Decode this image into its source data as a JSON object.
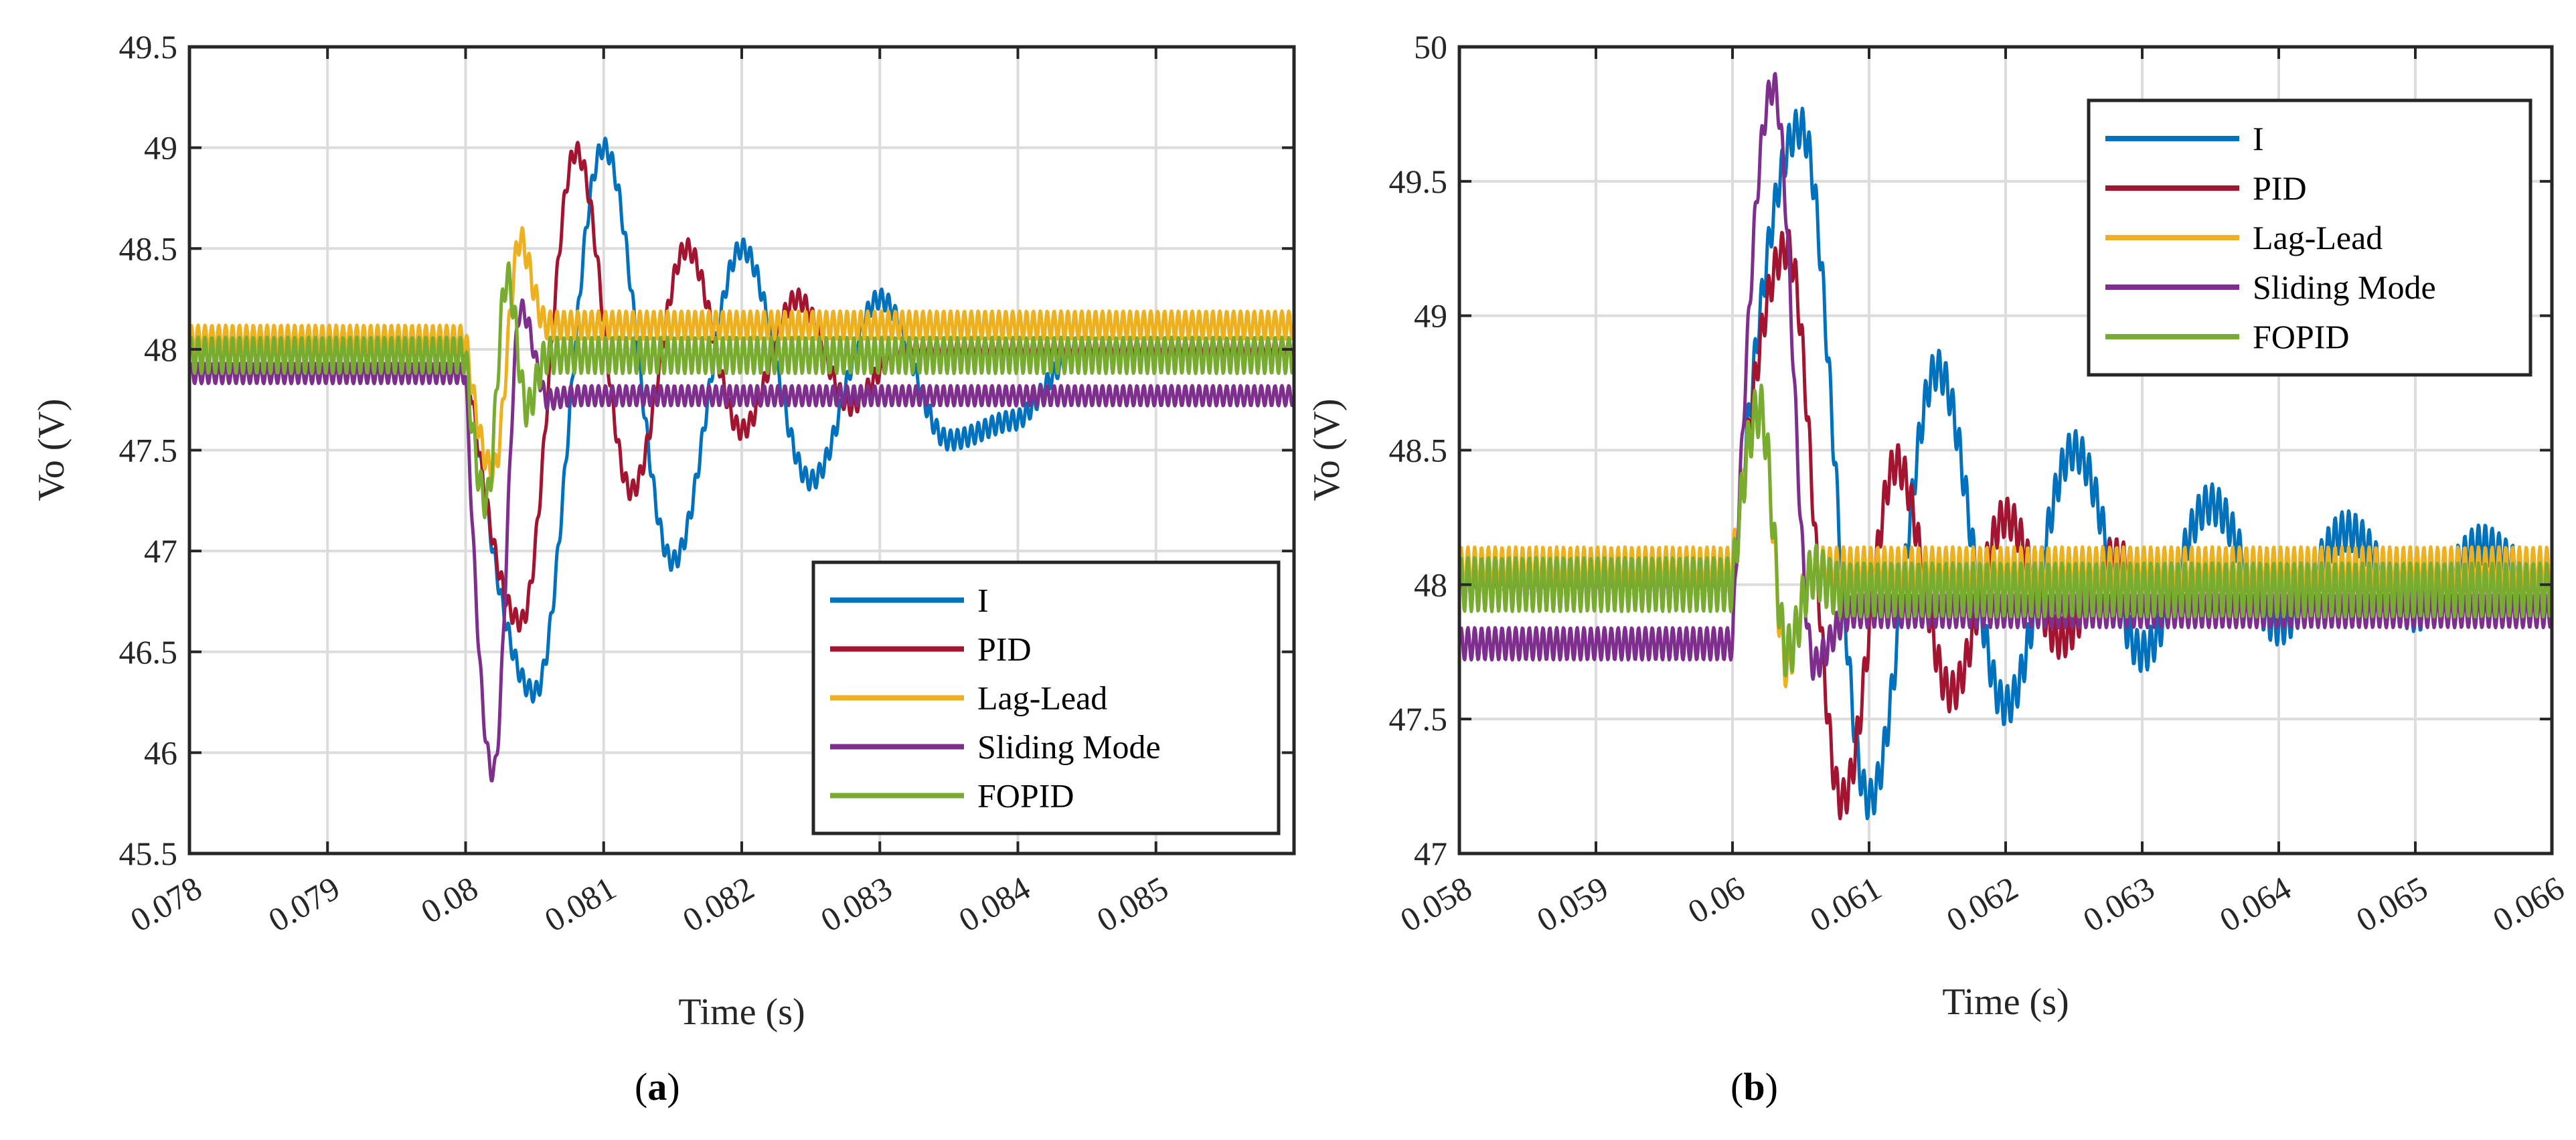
{
  "panel_labels": {
    "a": "a",
    "b": "b",
    "open": "(",
    "close": ")"
  },
  "chart_data": [
    {
      "id": "a",
      "type": "line",
      "xlabel": "Time (s)",
      "ylabel": "Vo (V)",
      "xlim": [
        0.078,
        0.086
      ],
      "ylim": [
        45.5,
        49.5
      ],
      "xticks": [
        0.078,
        0.079,
        0.08,
        0.081,
        0.082,
        0.083,
        0.084,
        0.085
      ],
      "xtick_labels": [
        "0.078",
        "0.079",
        "0.08",
        "0.081",
        "0.082",
        "0.083",
        "0.084",
        "0.085"
      ],
      "yticks": [
        45.5,
        46,
        46.5,
        47,
        47.5,
        48,
        48.5,
        49,
        49.5
      ],
      "ytick_labels": [
        "45.5",
        "46",
        "46.5",
        "47",
        "47.5",
        "48",
        "48.5",
        "49",
        "49.5"
      ],
      "grid": true,
      "legend_position": "bottom-right",
      "step_time": 0.08,
      "series": [
        {
          "name": "I",
          "color": "#0072BD",
          "pre": 48.0,
          "final": 48.0,
          "band": 0.1,
          "initial_dip": 46.3,
          "peaks": [
            49.0,
            48.5,
            48.25
          ],
          "troughs": [
            46.95,
            47.35,
            47.55,
            47.65
          ],
          "period": 0.001,
          "decay": 0.0012
        },
        {
          "name": "PID",
          "color": "#A2142F",
          "pre": 48.0,
          "final": 48.0,
          "band": 0.1,
          "initial_dip": 46.65,
          "peaks": [
            48.98,
            48.5,
            48.25
          ],
          "troughs": [
            47.3,
            47.6,
            47.72
          ],
          "period": 0.0008,
          "decay": 0.0008
        },
        {
          "name": "Lag-Lead",
          "color": "#EDB120",
          "pre": 48.05,
          "final": 48.12,
          "band": 0.14,
          "initial_dip": 47.4,
          "peaks": [
            48.55
          ],
          "troughs": [],
          "period": 0.0004,
          "decay": 0.002
        },
        {
          "name": "Sliding Mode",
          "color": "#7E2F8E",
          "pre": 47.88,
          "final": 47.77,
          "band": 0.1,
          "initial_dip": 45.9,
          "peaks": [
            48.2
          ],
          "troughs": [
            47.75
          ],
          "period": 0.0004,
          "decay": 0.0003
        },
        {
          "name": "FOPID",
          "color": "#77AC30",
          "pre": 47.97,
          "final": 47.97,
          "band": 0.18,
          "initial_dip": 47.25,
          "peaks": [
            48.35
          ],
          "troughs": [
            47.7
          ],
          "period": 0.0003,
          "decay": 0.0002
        }
      ]
    },
    {
      "id": "b",
      "type": "line",
      "xlabel": "Time (s)",
      "ylabel": "Vo (V)",
      "xlim": [
        0.058,
        0.066
      ],
      "ylim": [
        47,
        50
      ],
      "xticks": [
        0.058,
        0.059,
        0.06,
        0.061,
        0.062,
        0.063,
        0.064,
        0.065,
        0.066
      ],
      "xtick_labels": [
        "0.058",
        "0.059",
        "0.06",
        "0.061",
        "0.062",
        "0.063",
        "0.064",
        "0.065",
        "0.066"
      ],
      "yticks": [
        47,
        47.5,
        48,
        48.5,
        49,
        49.5,
        50
      ],
      "ytick_labels": [
        "47",
        "47.5",
        "48",
        "48.5",
        "49",
        "49.5",
        "50"
      ],
      "grid": true,
      "legend_position": "top-right",
      "step_time": 0.06,
      "series": [
        {
          "name": "I",
          "color": "#0072BD",
          "pre": 48.0,
          "final": 48.0,
          "band": 0.15,
          "initial_peak": 49.7,
          "peaks": [
            48.8,
            48.5,
            48.3,
            48.2,
            48.15
          ],
          "troughs": [
            47.2,
            47.55,
            47.75,
            47.85,
            47.9
          ],
          "period": 0.001,
          "decay": 0.0025
        },
        {
          "name": "PID",
          "color": "#A2142F",
          "pre": 48.0,
          "final": 47.98,
          "band": 0.15,
          "initial_peak": 49.25,
          "peaks": [
            48.45,
            48.25,
            48.1
          ],
          "troughs": [
            47.2,
            47.6,
            47.8
          ],
          "period": 0.0008,
          "decay": 0.0012
        },
        {
          "name": "Lag-Lead",
          "color": "#EDB120",
          "pre": 48.05,
          "final": 48.05,
          "band": 0.18,
          "initial_peak": 48.65,
          "peaks": [],
          "troughs": [
            47.7
          ],
          "period": 0.0004,
          "decay": 0.0015
        },
        {
          "name": "Sliding Mode",
          "color": "#7E2F8E",
          "pre": 47.78,
          "final": 47.9,
          "band": 0.12,
          "initial_peak": 49.85,
          "peaks": [],
          "troughs": [
            47.7
          ],
          "period": 0.0006,
          "decay": 0.0004
        },
        {
          "name": "FOPID",
          "color": "#77AC30",
          "pre": 48.0,
          "final": 47.98,
          "band": 0.2,
          "initial_peak": 48.65,
          "peaks": [
            48.05
          ],
          "troughs": [
            47.75
          ],
          "period": 0.0004,
          "decay": 0.0002
        }
      ]
    }
  ]
}
